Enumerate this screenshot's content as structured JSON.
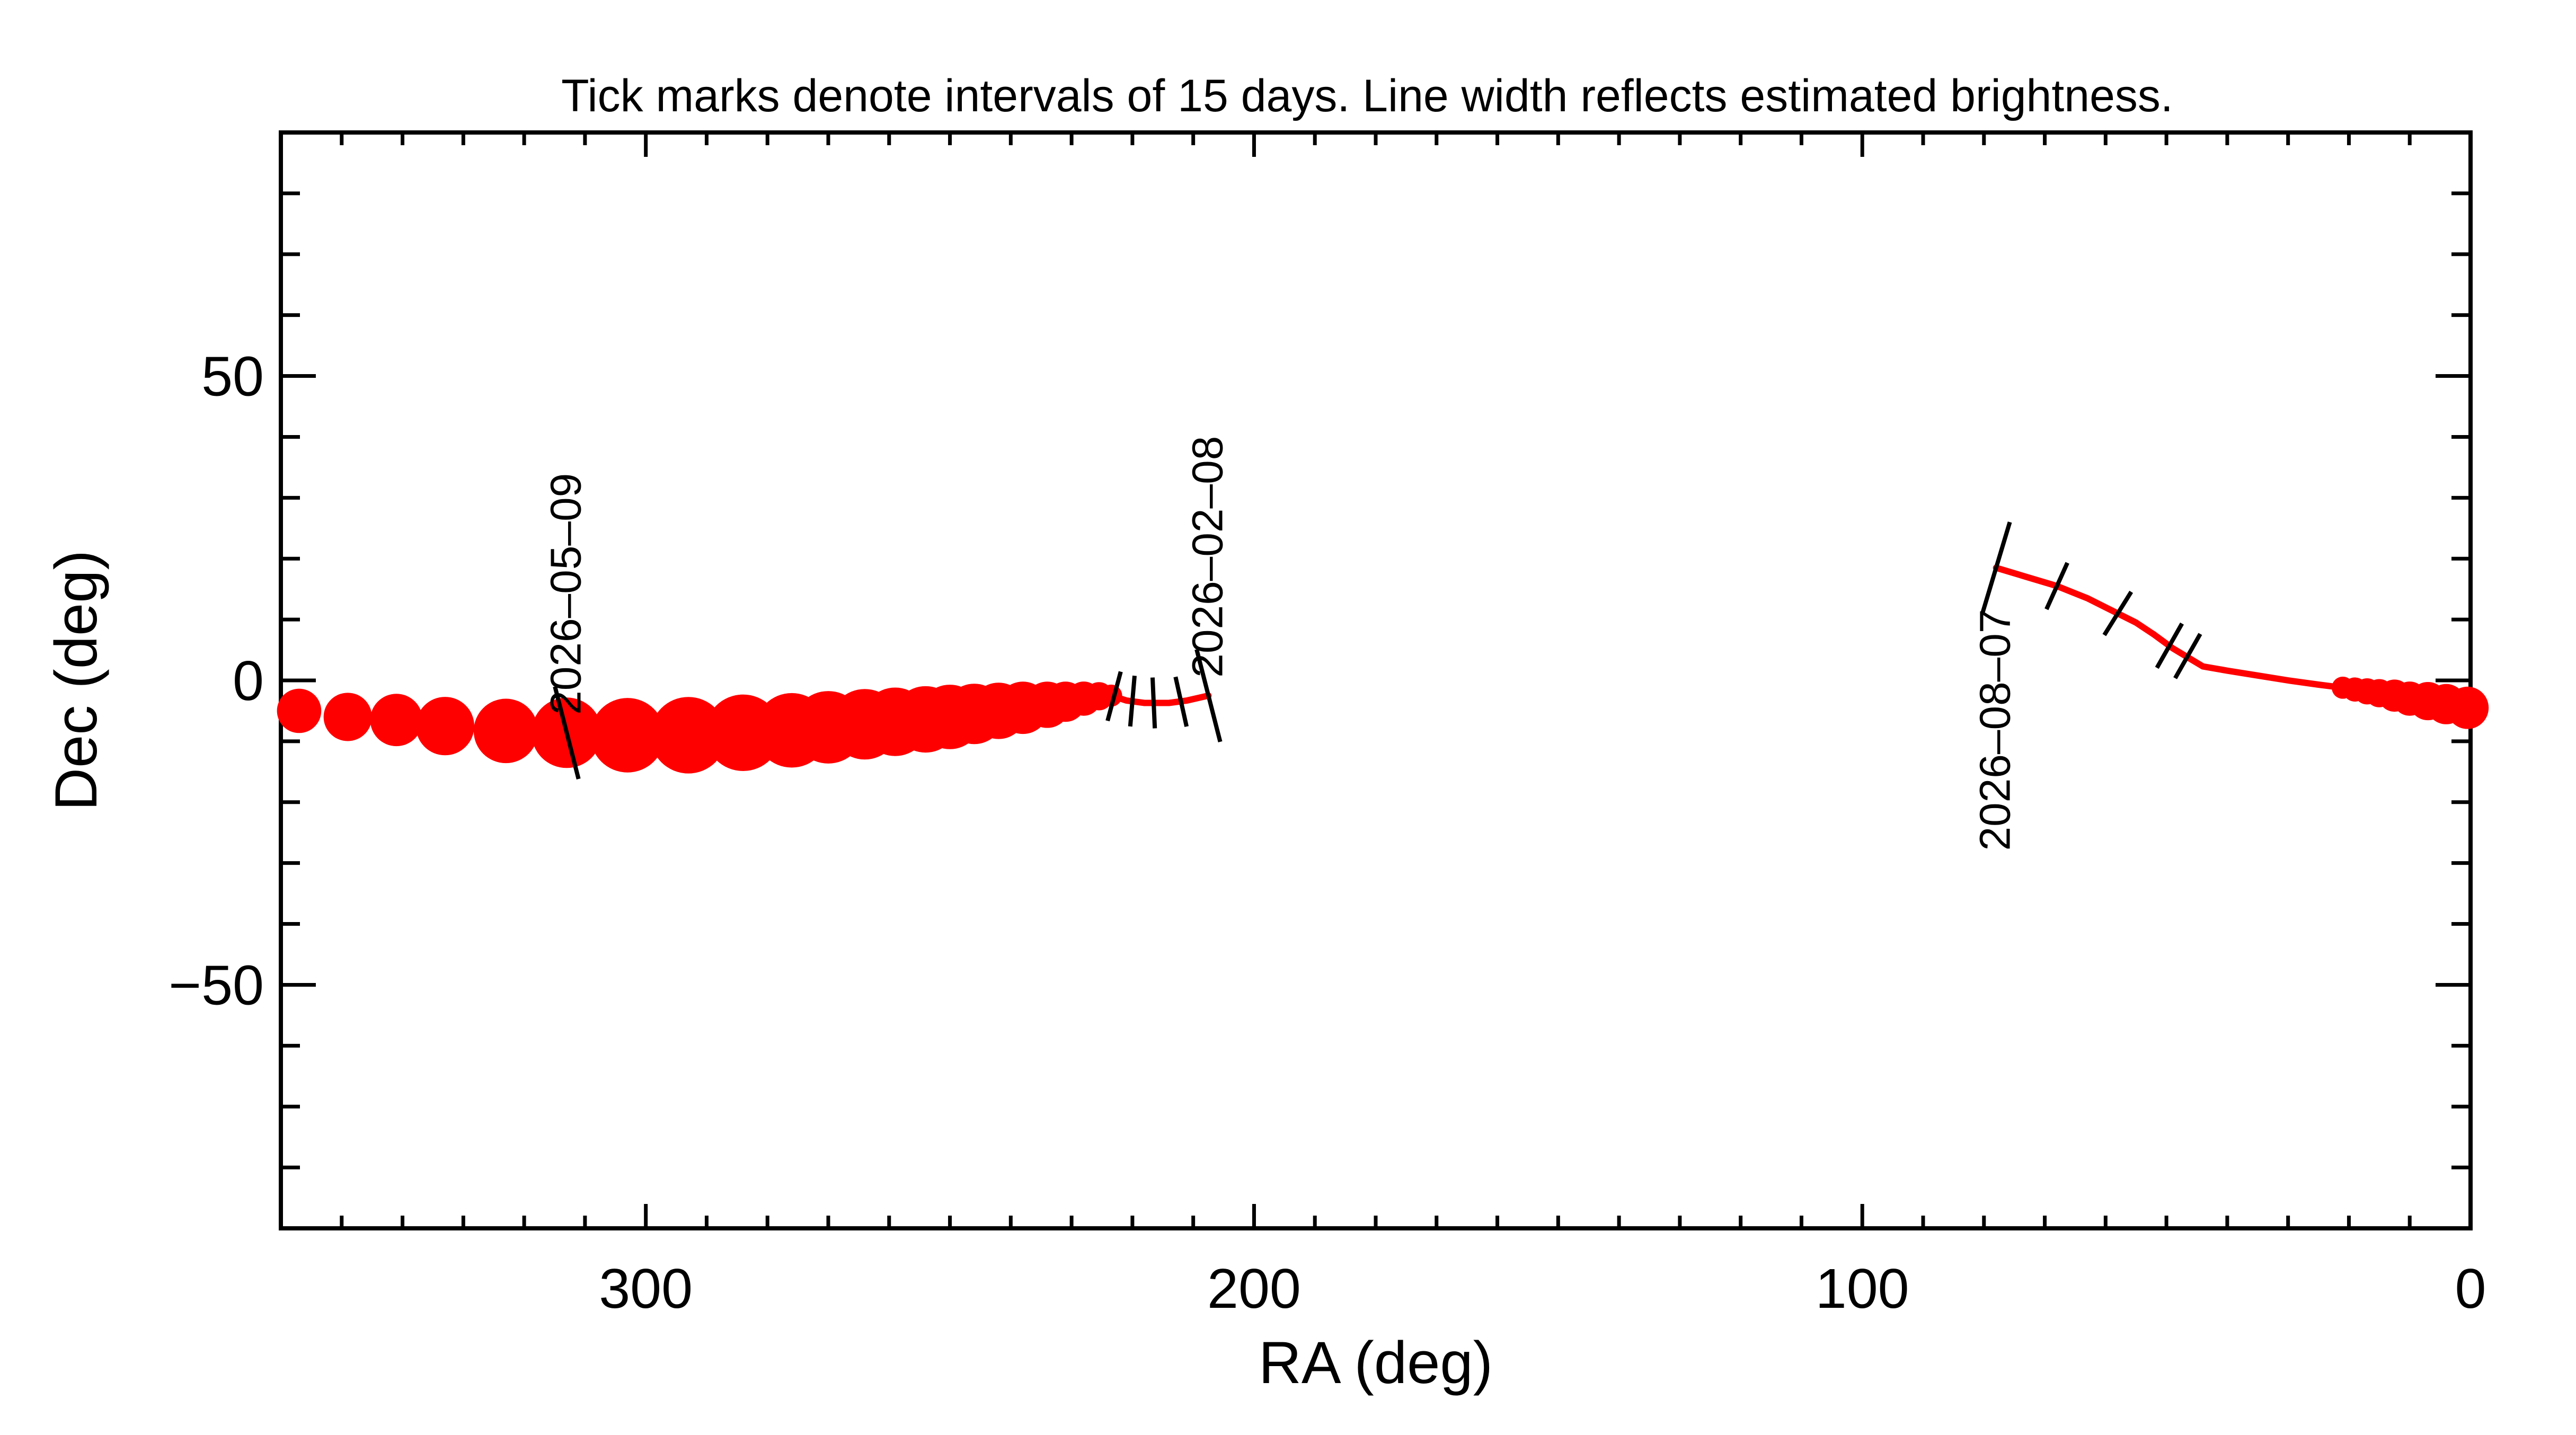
{
  "chart_data": {
    "type": "line",
    "title": "Tick marks denote intervals of 15 days.  Line width reflects estimated brightness.",
    "xlabel": "RA (deg)",
    "ylabel": "Dec (deg)",
    "xlim": [
      360,
      0
    ],
    "ylim": [
      -90,
      90
    ],
    "x_ticks": [
      300,
      200,
      100,
      0
    ],
    "x_tick_labels": [
      "300",
      "200",
      "100",
      "0"
    ],
    "y_ticks": [
      50,
      0,
      -50
    ],
    "y_tick_labels": [
      "50",
      "0",
      "−50"
    ],
    "grid": false,
    "legend": "none",
    "colors": {
      "track": "#ff0000",
      "tick": "#000000",
      "axes": "#000000"
    },
    "segments": [
      {
        "style": "dots",
        "points": [
          {
            "ra": 357,
            "dec": -5,
            "size": 1.1
          },
          {
            "ra": 349,
            "dec": -6,
            "size": 1.2
          },
          {
            "ra": 341,
            "dec": -6.5,
            "size": 1.3
          },
          {
            "ra": 333,
            "dec": -7.5,
            "size": 1.45
          },
          {
            "ra": 323,
            "dec": -8.3,
            "size": 1.6
          },
          {
            "ra": 313,
            "dec": -8.6,
            "size": 1.75
          },
          {
            "ra": 303,
            "dec": -9,
            "size": 1.85
          },
          {
            "ra": 293,
            "dec": -9,
            "size": 1.9
          },
          {
            "ra": 284,
            "dec": -8.6,
            "size": 1.9
          },
          {
            "ra": 276,
            "dec": -8.2,
            "size": 1.85
          },
          {
            "ra": 270,
            "dec": -7.7,
            "size": 1.8
          },
          {
            "ra": 264,
            "dec": -7.2,
            "size": 1.75
          },
          {
            "ra": 259,
            "dec": -6.8,
            "size": 1.7
          },
          {
            "ra": 254,
            "dec": -6.4,
            "size": 1.65
          },
          {
            "ra": 250,
            "dec": -6.0,
            "size": 1.6
          },
          {
            "ra": 246,
            "dec": -5.5,
            "size": 1.5
          },
          {
            "ra": 242,
            "dec": -5.0,
            "size": 1.4
          },
          {
            "ra": 238,
            "dec": -4.5,
            "size": 1.3
          },
          {
            "ra": 234,
            "dec": -4.0,
            "size": 1.15
          },
          {
            "ra": 231,
            "dec": -3.5,
            "size": 1.0
          },
          {
            "ra": 228,
            "dec": -3.0,
            "size": 0.85
          },
          {
            "ra": 225.5,
            "dec": -2.6,
            "size": 0.7
          },
          {
            "ra": 223.5,
            "dec": -2.5,
            "size": 0.55
          }
        ]
      },
      {
        "style": "line",
        "points": [
          {
            "ra": 223.5,
            "dec": -2.5
          },
          {
            "ra": 221,
            "dec": -3.3
          },
          {
            "ra": 218,
            "dec": -3.7
          },
          {
            "ra": 214,
            "dec": -3.7
          },
          {
            "ra": 211,
            "dec": -3.3
          },
          {
            "ra": 207.5,
            "dec": -2.5
          }
        ]
      },
      {
        "style": "line",
        "points": [
          {
            "ra": 78,
            "dec": 18.5
          },
          {
            "ra": 73,
            "dec": 17
          },
          {
            "ra": 68,
            "dec": 15.5
          },
          {
            "ra": 63,
            "dec": 13.5
          },
          {
            "ra": 59,
            "dec": 11.5
          },
          {
            "ra": 55,
            "dec": 9.5
          },
          {
            "ra": 52,
            "dec": 7.5
          },
          {
            "ra": 49,
            "dec": 5.3
          },
          {
            "ra": 46,
            "dec": 3.5
          },
          {
            "ra": 44,
            "dec": 2.3
          },
          {
            "ra": 40,
            "dec": 1.6
          },
          {
            "ra": 35,
            "dec": 0.8
          },
          {
            "ra": 30,
            "dec": 0.0
          },
          {
            "ra": 25,
            "dec": -0.7
          },
          {
            "ra": 21,
            "dec": -1.2
          }
        ]
      },
      {
        "style": "dots",
        "points": [
          {
            "ra": 21,
            "dec": -1.2,
            "size": 0.55
          },
          {
            "ra": 19,
            "dec": -1.5,
            "size": 0.6
          },
          {
            "ra": 17,
            "dec": -1.8,
            "size": 0.65
          },
          {
            "ra": 15,
            "dec": -2.1,
            "size": 0.7
          },
          {
            "ra": 12.5,
            "dec": -2.5,
            "size": 0.8
          },
          {
            "ra": 10,
            "dec": -3.0,
            "size": 0.85
          },
          {
            "ra": 7,
            "dec": -3.4,
            "size": 0.95
          },
          {
            "ra": 4,
            "dec": -3.9,
            "size": 1.0
          },
          {
            "ra": 0.5,
            "dec": -4.5,
            "size": 1.05
          }
        ]
      }
    ],
    "ticks": [
      {
        "ra": 313,
        "dec": -8.6,
        "major": true
      },
      {
        "ra": 223,
        "dec": -2.6
      },
      {
        "ra": 220,
        "dec": -3.4
      },
      {
        "ra": 216.5,
        "dec": -3.7
      },
      {
        "ra": 212,
        "dec": -3.5
      },
      {
        "ra": 207.5,
        "dec": -2.5,
        "major": true
      },
      {
        "ra": 78,
        "dec": 18.5,
        "major": true
      },
      {
        "ra": 68,
        "dec": 15.5
      },
      {
        "ra": 58,
        "dec": 11
      },
      {
        "ra": 49.5,
        "dec": 5.7
      },
      {
        "ra": 46.5,
        "dec": 4
      }
    ],
    "date_labels": [
      {
        "text": "2026–05–09",
        "ra": 313,
        "dec": -8.6,
        "anchor": "above"
      },
      {
        "text": "2026–02–08",
        "ra": 207.5,
        "dec": -2.5,
        "anchor": "above"
      },
      {
        "text": "2026–08–07",
        "ra": 78,
        "dec": 18.5,
        "anchor": "below"
      }
    ]
  }
}
